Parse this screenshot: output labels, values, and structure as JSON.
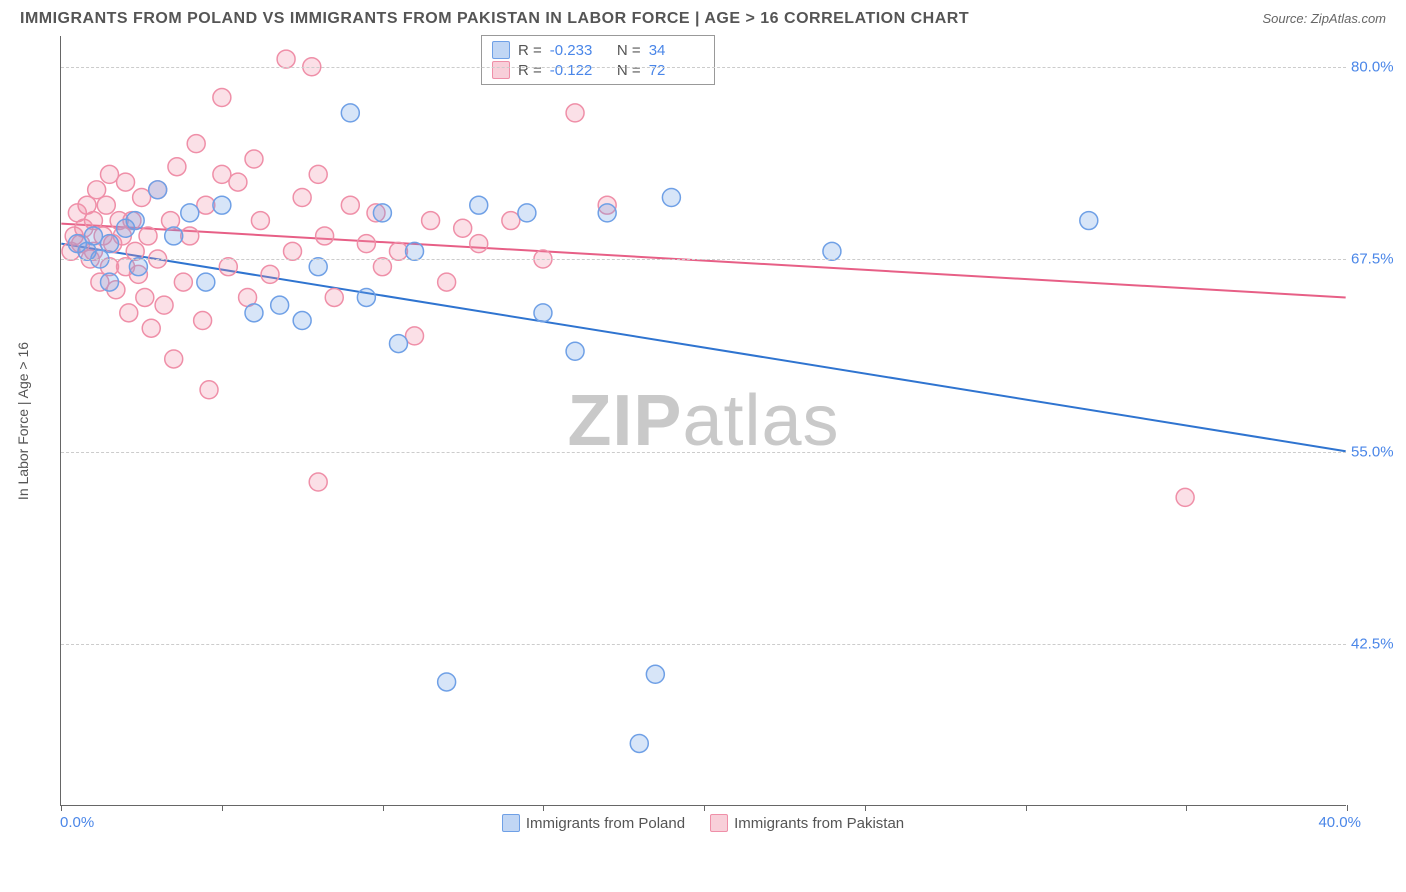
{
  "title": "IMMIGRANTS FROM POLAND VS IMMIGRANTS FROM PAKISTAN IN LABOR FORCE | AGE > 16 CORRELATION CHART",
  "source": "Source: ZipAtlas.com",
  "y_axis_title": "In Labor Force | Age > 16",
  "watermark_a": "ZIP",
  "watermark_b": "atlas",
  "chart": {
    "type": "scatter",
    "xlim": [
      0.0,
      40.0
    ],
    "ylim": [
      32.0,
      82.0
    ],
    "y_ticks": [
      42.5,
      55.0,
      67.5,
      80.0
    ],
    "y_tick_labels": [
      "42.5%",
      "55.0%",
      "67.5%",
      "80.0%"
    ],
    "x_ticks": [
      0,
      5,
      10,
      15,
      20,
      25,
      30,
      35,
      40
    ],
    "x_min_label": "0.0%",
    "x_max_label": "40.0%",
    "background_color": "#ffffff",
    "grid_color": "#cccccc",
    "axis_color": "#666666",
    "tick_label_color": "#4a86e8",
    "marker_radius": 9,
    "marker_stroke_width": 1.5,
    "marker_fill_opacity": 0.28,
    "trend_line_width": 2,
    "series": [
      {
        "name": "Immigrants from Poland",
        "color": "#6fa0e6",
        "line_color": "#2f74d0",
        "R": "-0.233",
        "N": "34",
        "trend": {
          "y_at_xmin": 68.5,
          "y_at_xmax": 55.0
        },
        "points": [
          [
            0.5,
            68.5
          ],
          [
            0.8,
            68.0
          ],
          [
            1.0,
            69.0
          ],
          [
            1.2,
            67.5
          ],
          [
            1.5,
            68.5
          ],
          [
            1.5,
            66.0
          ],
          [
            2.0,
            69.5
          ],
          [
            2.3,
            70.0
          ],
          [
            2.4,
            67.0
          ],
          [
            3.0,
            72.0
          ],
          [
            3.5,
            69.0
          ],
          [
            4.0,
            70.5
          ],
          [
            4.5,
            66.0
          ],
          [
            5.0,
            71.0
          ],
          [
            6.0,
            64.0
          ],
          [
            6.8,
            64.5
          ],
          [
            7.5,
            63.5
          ],
          [
            8.0,
            67.0
          ],
          [
            9.0,
            77.0
          ],
          [
            9.5,
            65.0
          ],
          [
            10.0,
            70.5
          ],
          [
            10.5,
            62.0
          ],
          [
            11.0,
            68.0
          ],
          [
            12.0,
            40.0
          ],
          [
            13.0,
            71.0
          ],
          [
            14.5,
            70.5
          ],
          [
            15.0,
            64.0
          ],
          [
            16.0,
            61.5
          ],
          [
            17.0,
            70.5
          ],
          [
            18.0,
            36.0
          ],
          [
            18.5,
            40.5
          ],
          [
            19.0,
            71.5
          ],
          [
            24.0,
            68.0
          ],
          [
            32.0,
            70.0
          ]
        ]
      },
      {
        "name": "Immigrants from Pakistan",
        "color": "#ef8fa8",
        "line_color": "#e75f86",
        "R": "-0.122",
        "N": "72",
        "trend": {
          "y_at_xmin": 69.8,
          "y_at_xmax": 65.0
        },
        "points": [
          [
            0.3,
            68.0
          ],
          [
            0.4,
            69.0
          ],
          [
            0.5,
            70.5
          ],
          [
            0.6,
            68.5
          ],
          [
            0.7,
            69.5
          ],
          [
            0.8,
            71.0
          ],
          [
            0.9,
            67.5
          ],
          [
            1.0,
            70.0
          ],
          [
            1.0,
            68.0
          ],
          [
            1.1,
            72.0
          ],
          [
            1.2,
            66.0
          ],
          [
            1.3,
            69.0
          ],
          [
            1.4,
            71.0
          ],
          [
            1.5,
            67.0
          ],
          [
            1.5,
            73.0
          ],
          [
            1.6,
            68.5
          ],
          [
            1.7,
            65.5
          ],
          [
            1.8,
            70.0
          ],
          [
            1.9,
            69.0
          ],
          [
            2.0,
            67.0
          ],
          [
            2.0,
            72.5
          ],
          [
            2.1,
            64.0
          ],
          [
            2.2,
            70.0
          ],
          [
            2.3,
            68.0
          ],
          [
            2.4,
            66.5
          ],
          [
            2.5,
            71.5
          ],
          [
            2.6,
            65.0
          ],
          [
            2.7,
            69.0
          ],
          [
            2.8,
            63.0
          ],
          [
            3.0,
            72.0
          ],
          [
            3.0,
            67.5
          ],
          [
            3.2,
            64.5
          ],
          [
            3.4,
            70.0
          ],
          [
            3.5,
            61.0
          ],
          [
            3.6,
            73.5
          ],
          [
            3.8,
            66.0
          ],
          [
            4.0,
            69.0
          ],
          [
            4.2,
            75.0
          ],
          [
            4.4,
            63.5
          ],
          [
            4.5,
            71.0
          ],
          [
            4.6,
            59.0
          ],
          [
            5.0,
            73.0
          ],
          [
            5.0,
            78.0
          ],
          [
            5.2,
            67.0
          ],
          [
            5.5,
            72.5
          ],
          [
            5.8,
            65.0
          ],
          [
            6.0,
            74.0
          ],
          [
            6.2,
            70.0
          ],
          [
            6.5,
            66.5
          ],
          [
            7.0,
            80.5
          ],
          [
            7.2,
            68.0
          ],
          [
            7.5,
            71.5
          ],
          [
            7.8,
            80.0
          ],
          [
            8.0,
            73.0
          ],
          [
            8.0,
            53.0
          ],
          [
            8.2,
            69.0
          ],
          [
            8.5,
            65.0
          ],
          [
            9.0,
            71.0
          ],
          [
            9.5,
            68.5
          ],
          [
            9.8,
            70.5
          ],
          [
            10.0,
            67.0
          ],
          [
            10.5,
            68.0
          ],
          [
            11.0,
            62.5
          ],
          [
            11.5,
            70.0
          ],
          [
            12.0,
            66.0
          ],
          [
            12.5,
            69.5
          ],
          [
            13.0,
            68.5
          ],
          [
            14.0,
            70.0
          ],
          [
            15.0,
            67.5
          ],
          [
            16.0,
            77.0
          ],
          [
            17.0,
            71.0
          ],
          [
            35.0,
            52.0
          ]
        ]
      }
    ]
  }
}
